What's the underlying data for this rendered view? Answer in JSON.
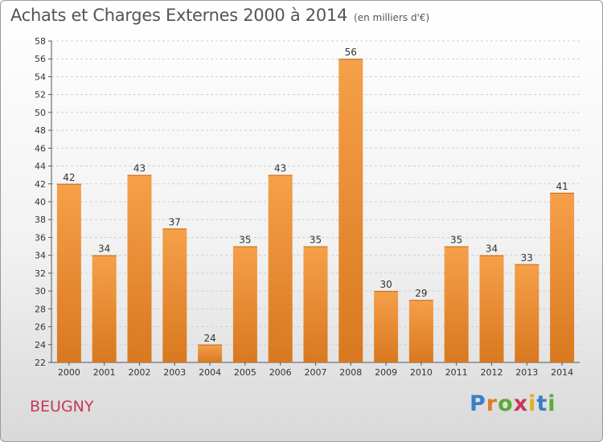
{
  "header": {
    "title": "Achats et Charges Externes 2000 à 2014",
    "unit": "(en milliers d'€)"
  },
  "footer": {
    "commune": "BEUGNY",
    "logo_letters": [
      "P",
      "r",
      "o",
      "x",
      "i",
      "t",
      "i"
    ],
    "logo_colors": [
      "#3a7fc8",
      "#e07a2a",
      "#5aaa3a",
      "#c8385a",
      "#e0b020",
      "#3a7fc8",
      "#5aaa3a"
    ]
  },
  "colors": {
    "bar_top": "#f5a04a",
    "bar_bottom": "#d9781f",
    "grid": "#cfcfcf"
  },
  "chart_data": {
    "type": "bar",
    "title": "Achats et Charges Externes 2000 à 2014",
    "subtitle": "(en milliers d'€)",
    "categories": [
      "2000",
      "2001",
      "2002",
      "2003",
      "2004",
      "2005",
      "2006",
      "2007",
      "2008",
      "2009",
      "2010",
      "2011",
      "2012",
      "2013",
      "2014"
    ],
    "values": [
      42,
      34,
      43,
      37,
      24,
      35,
      43,
      35,
      56,
      30,
      29,
      35,
      34,
      33,
      41
    ],
    "ylim": [
      22,
      58
    ],
    "yticks": [
      22,
      24,
      26,
      28,
      30,
      32,
      34,
      36,
      38,
      40,
      42,
      44,
      46,
      48,
      50,
      52,
      54,
      56,
      58
    ],
    "grid": true,
    "legend": "none"
  }
}
